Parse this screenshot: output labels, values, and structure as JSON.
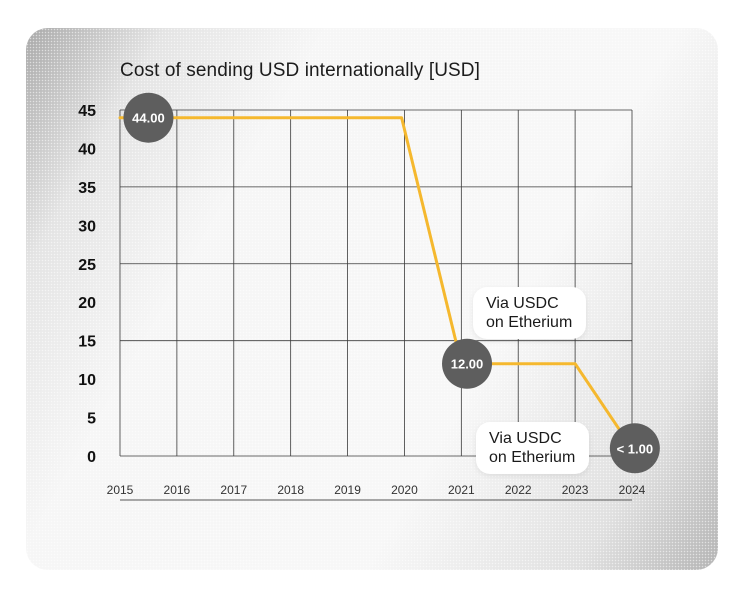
{
  "chart_data": {
    "type": "line",
    "title": "Cost of sending USD internationally [USD]",
    "xlabel": "",
    "ylabel": "",
    "x": [
      "2015",
      "2016",
      "2017",
      "2018",
      "2019",
      "2020",
      "2021",
      "2022",
      "2023",
      "2024"
    ],
    "yticks": [
      "0",
      "5",
      "10",
      "15",
      "20",
      "25",
      "30",
      "35",
      "40",
      "45"
    ],
    "ylim": [
      0,
      45
    ],
    "series": [
      {
        "points": [
          {
            "x": 2015.0,
            "y": 44
          },
          {
            "x": 2016.0,
            "y": 44
          },
          {
            "x": 2017.0,
            "y": 44
          },
          {
            "x": 2018.0,
            "y": 44
          },
          {
            "x": 2019.0,
            "y": 44
          },
          {
            "x": 2019.95,
            "y": 44
          },
          {
            "x": 2021.0,
            "y": 12
          },
          {
            "x": 2022.0,
            "y": 12
          },
          {
            "x": 2023.0,
            "y": 12
          },
          {
            "x": 2024.0,
            "y": 1
          }
        ],
        "color": "#F5B82E"
      }
    ],
    "annotations": [
      {
        "x": 2015.5,
        "y": 44,
        "text": "44.00"
      },
      {
        "x": 2021.1,
        "y": 12,
        "text": "12.00"
      },
      {
        "x": 2024.05,
        "y": 1,
        "text": "< 1.00"
      }
    ],
    "callouts": [
      {
        "line1": "Via USDC",
        "line2": "on Etherium"
      },
      {
        "line1": "Via USDC",
        "line2": "on Etherium"
      }
    ],
    "grid": true,
    "colors": {
      "line": "#F5B82E",
      "bubble": "#5E5E5E",
      "grid": "#3a3a3a"
    }
  }
}
